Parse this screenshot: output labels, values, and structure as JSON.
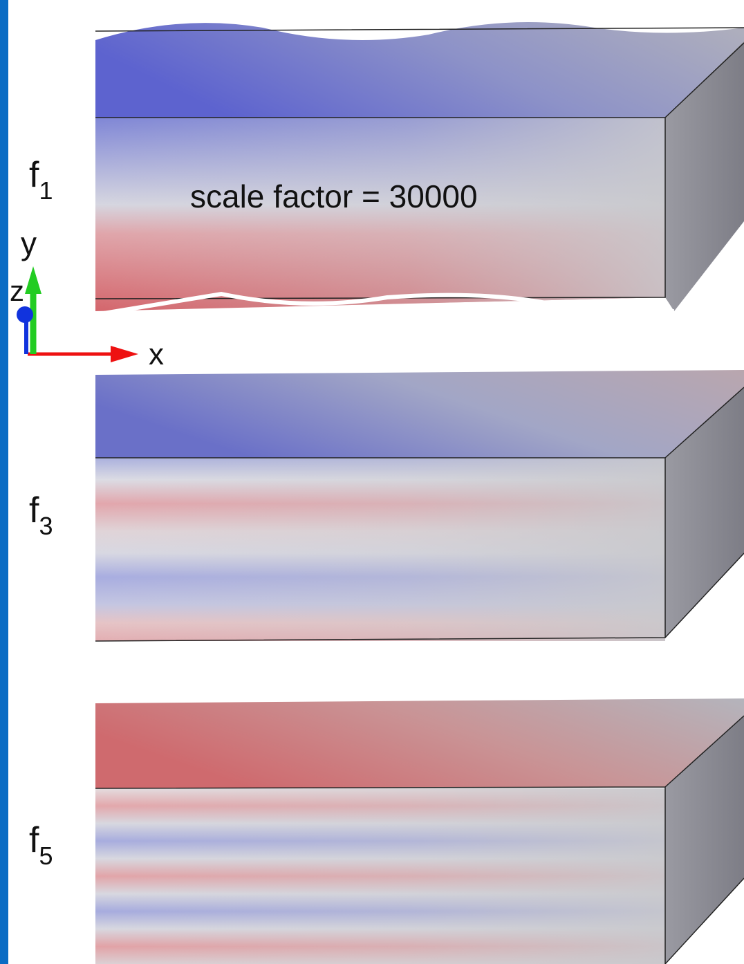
{
  "panels": [
    {
      "label": "f",
      "subscript": "1",
      "annotation": "scale factor = 30000"
    },
    {
      "label": "f",
      "subscript": "3"
    },
    {
      "label": "f",
      "subscript": "5"
    }
  ],
  "axes": {
    "x": "x",
    "y": "y",
    "z": "z"
  }
}
